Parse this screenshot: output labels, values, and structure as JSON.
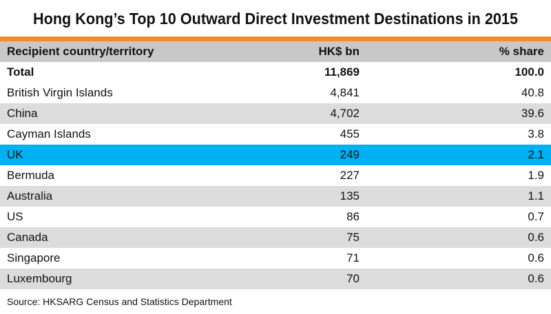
{
  "title": "Hong Kong’s Top 10 Outward Direct Investment Destinations in 2015",
  "colors": {
    "accent_bar": "#f28c28",
    "header_bg": "#c8c8c8",
    "row_gray": "#dcdcdc",
    "row_white": "#ffffff",
    "highlight": "#00b0f0"
  },
  "chart_data": {
    "type": "table",
    "columns": [
      "Recipient  country/territory",
      "HK$ bn",
      "% share"
    ],
    "total": {
      "name": "Total",
      "value": "11,869",
      "share": "100.0"
    },
    "rows": [
      {
        "name": "British Virgin Islands",
        "value": "4,841",
        "share": "40.8"
      },
      {
        "name": "China",
        "value": "4,702",
        "share": "39.6"
      },
      {
        "name": "Cayman Islands",
        "value": "455",
        "share": "3.8"
      },
      {
        "name": "UK",
        "value": "249",
        "share": "2.1",
        "highlight": true
      },
      {
        "name": "Bermuda",
        "value": "227",
        "share": "1.9"
      },
      {
        "name": "Australia",
        "value": "135",
        "share": "1.1"
      },
      {
        "name": "US",
        "value": "86",
        "share": "0.7"
      },
      {
        "name": "Canada",
        "value": "75",
        "share": "0.6"
      },
      {
        "name": "Singapore",
        "value": "71",
        "share": "0.6"
      },
      {
        "name": "Luxembourg",
        "value": "70",
        "share": "0.6"
      }
    ]
  },
  "source": "Source: HKSARG Census and Statistics Department"
}
